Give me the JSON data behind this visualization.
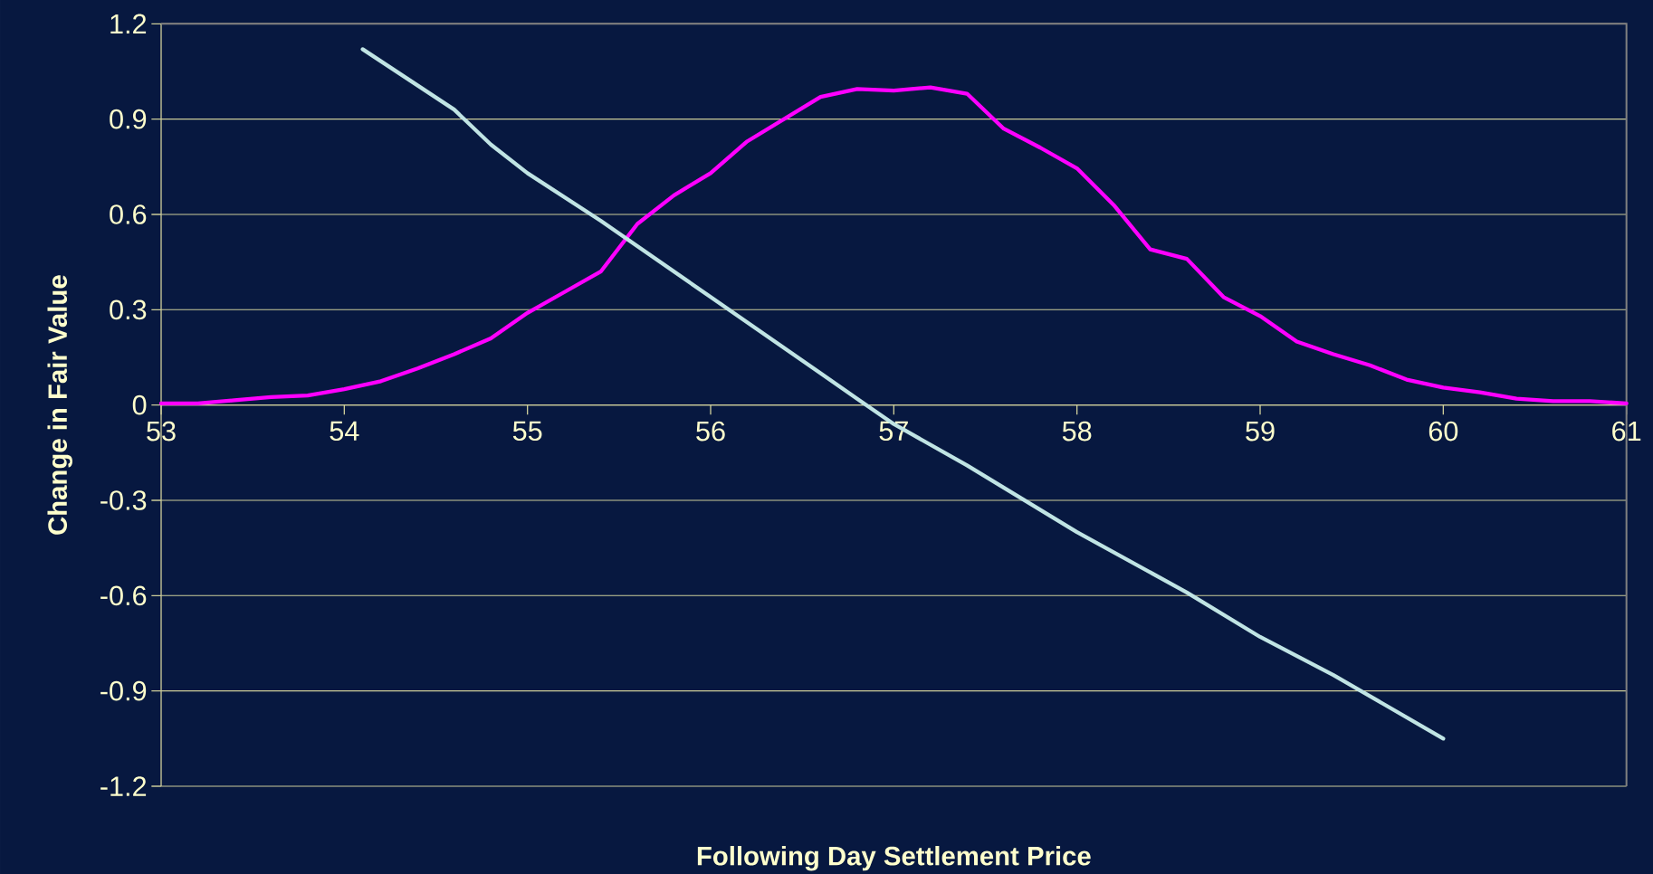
{
  "chart_data": {
    "type": "line",
    "xlabel": "Following Day Settlement Price",
    "ylabel": "Change in Fair Value",
    "xlim": [
      53,
      61
    ],
    "ylim": [
      -1.2,
      1.2
    ],
    "xticks": [
      53,
      54,
      55,
      56,
      57,
      58,
      59,
      60,
      61
    ],
    "yticks": [
      -1.2,
      -0.9,
      -0.6,
      -0.3,
      0,
      0.3,
      0.6,
      0.9,
      1.2
    ],
    "grid": "y",
    "marker": "none",
    "line_style": "solid",
    "series": [
      {
        "color": "#ff00ff",
        "x": [
          53,
          53.2,
          53.4,
          53.6,
          53.8,
          54,
          54.2,
          54.4,
          54.6,
          54.8,
          55,
          55.2,
          55.4,
          55.6,
          55.8,
          56,
          56.2,
          56.4,
          56.6,
          56.8,
          57,
          57.2,
          57.4,
          57.6,
          57.8,
          58,
          58.2,
          58.4,
          58.6,
          58.8,
          59,
          59.2,
          59.4,
          59.6,
          59.8,
          60,
          60.2,
          60.4,
          60.6,
          60.8,
          61
        ],
        "values": [
          0.005,
          0.005,
          0.015,
          0.025,
          0.03,
          0.05,
          0.075,
          0.115,
          0.16,
          0.21,
          0.29,
          0.355,
          0.42,
          0.57,
          0.66,
          0.73,
          0.83,
          0.9,
          0.97,
          0.995,
          0.99,
          1.0,
          0.98,
          0.87,
          0.81,
          0.745,
          0.63,
          0.49,
          0.46,
          0.34,
          0.28,
          0.2,
          0.16,
          0.125,
          0.08,
          0.055,
          0.04,
          0.02,
          0.012,
          0.012,
          0.005
        ]
      },
      {
        "color": "#c0e4e4",
        "x": [
          54.1,
          54.6,
          54.8,
          55,
          55.4,
          56,
          56.6,
          56.8,
          57,
          57.4,
          58,
          58.6,
          59,
          59.4,
          60
        ],
        "values": [
          1.12,
          0.93,
          0.82,
          0.73,
          0.58,
          0.34,
          0.1,
          0.02,
          -0.06,
          -0.19,
          -0.4,
          -0.59,
          -0.73,
          -0.85,
          -1.05
        ]
      }
    ]
  }
}
